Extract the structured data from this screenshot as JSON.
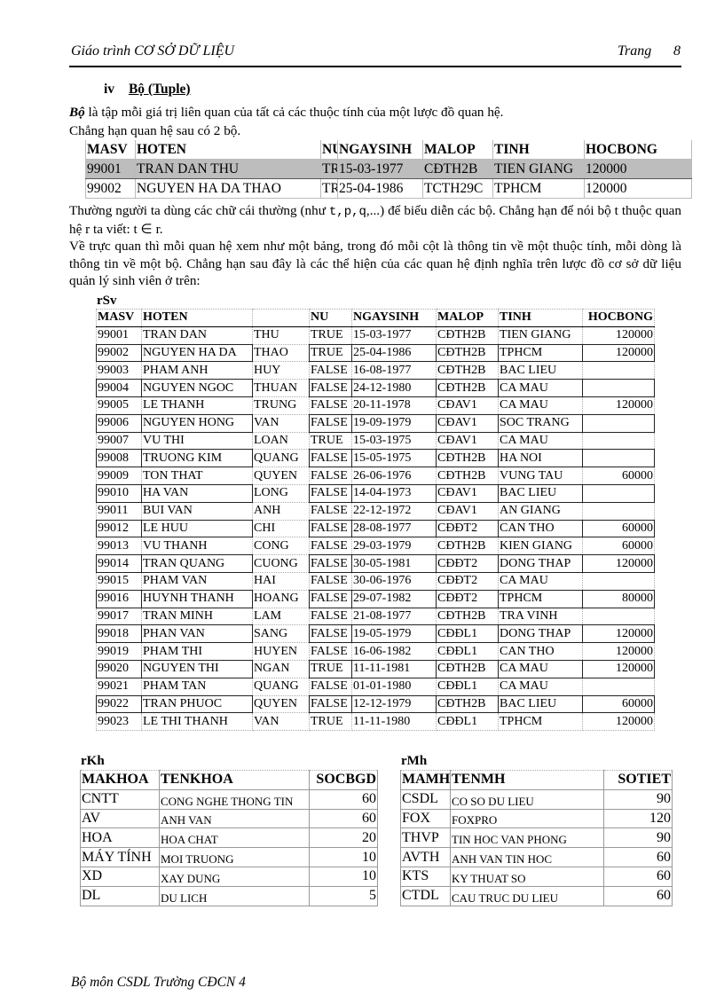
{
  "header": {
    "title": "Giáo trình CƠ SỞ DỮ LIỆU",
    "page_label": "Trang",
    "page_number": "8"
  },
  "section": {
    "number": "iv",
    "title": "Bộ (Tuple)"
  },
  "paragraphs": {
    "p1_term": "Bộ",
    "p1_rest": " là tập mỗi giá trị liên quan của tất cả các thuộc tính của một lược đồ quan hệ.",
    "p2": "Chẳng hạn quan hệ sau có 2 bộ.",
    "p3a": "Thường người ta dùng các chữ cái thường (như ",
    "p3code": "t,p,q",
    "p3b": ",...) để biểu diễn các bộ. Chẳng hạn để nói bộ t thuộc quan hệ r ta viết: t ∈ r.",
    "p4": "Về trực quan thì mỗi quan hệ xem như một bảng, trong đó mỗi cột là thông tin về một thuộc tính, mỗi dòng là thông tin về một bộ. Chẳng hạn sau đây là các thể hiện của các quan hệ định nghĩa trên lược đồ cơ sở dữ liệu quản lý sinh viên ở trên:"
  },
  "example_table": {
    "columns": [
      "MASV",
      "HOTEN",
      "NU",
      "NGAYSINH",
      "MALOP",
      "TINH",
      "HOCBONG"
    ],
    "rows": [
      [
        "99001",
        "TRAN DAN THU",
        "TRUE",
        "15-03-1977",
        "CĐTH2B",
        "TIEN GIANG",
        "120000"
      ],
      [
        "99002",
        "NGUYEN HA DA THAO",
        "TRUE",
        "25-04-1986",
        "TCTH29C",
        "TPHCM",
        "120000"
      ]
    ]
  },
  "rSv": {
    "label": "rSv",
    "columns": [
      "MASV",
      "HOTEN",
      "",
      "NU",
      "NGAYSINH",
      "MALOP",
      "TINH",
      "HOCBONG"
    ],
    "rows": [
      [
        "99001",
        "TRAN DAN",
        "THU",
        "TRUE",
        "15-03-1977",
        "CĐTH2B",
        "TIEN GIANG",
        "120000"
      ],
      [
        "99002",
        "NGUYEN HA DA",
        "THAO",
        "TRUE",
        "25-04-1986",
        "CĐTH2B",
        "TPHCM",
        "120000"
      ],
      [
        "99003",
        "PHAM ANH",
        "HUY",
        "FALSE",
        "16-08-1977",
        "CĐTH2B",
        "BAC LIEU",
        ""
      ],
      [
        "99004",
        "NGUYEN NGOC",
        "THUAN",
        "FALSE",
        "24-12-1980",
        "CĐTH2B",
        "CA MAU",
        ""
      ],
      [
        "99005",
        "LE THANH",
        "TRUNG",
        "FALSE",
        "20-11-1978",
        "CĐAV1",
        "CA MAU",
        "120000"
      ],
      [
        "99006",
        "NGUYEN HONG",
        "VAN",
        "FALSE",
        "19-09-1979",
        "CĐAV1",
        "SOC TRANG",
        ""
      ],
      [
        "99007",
        "VU THI",
        "LOAN",
        "TRUE",
        "15-03-1975",
        "CĐAV1",
        "CA MAU",
        ""
      ],
      [
        "99008",
        "TRUONG KIM",
        "QUANG",
        "FALSE",
        "15-05-1975",
        "CĐTH2B",
        "HA NOI",
        ""
      ],
      [
        "99009",
        "TON THAT",
        "QUYEN",
        "FALSE",
        "26-06-1976",
        "CĐTH2B",
        "VUNG TAU",
        "60000"
      ],
      [
        "99010",
        "HA VAN",
        "LONG",
        "FALSE",
        "14-04-1973",
        "CĐAV1",
        "BAC LIEU",
        ""
      ],
      [
        "99011",
        "BUI VAN",
        "ANH",
        "FALSE",
        "22-12-1972",
        "CĐAV1",
        "AN GIANG",
        ""
      ],
      [
        "99012",
        "LE HUU",
        "CHI",
        "FALSE",
        "28-08-1977",
        "CĐĐT2",
        "CAN THO",
        "60000"
      ],
      [
        "99013",
        "VU THANH",
        "CONG",
        "FALSE",
        "29-03-1979",
        "CĐTH2B",
        "KIEN GIANG",
        "60000"
      ],
      [
        "99014",
        "TRAN QUANG",
        "CUONG",
        "FALSE",
        "30-05-1981",
        "CĐĐT2",
        "DONG THAP",
        "120000"
      ],
      [
        "99015",
        "PHAM VAN",
        "HAI",
        "FALSE",
        "30-06-1976",
        "CĐĐT2",
        "CA MAU",
        ""
      ],
      [
        "99016",
        "HUYNH THANH",
        "HOANG",
        "FALSE",
        "29-07-1982",
        "CĐĐT2",
        "TPHCM",
        "80000"
      ],
      [
        "99017",
        "TRAN MINH",
        "LAM",
        "FALSE",
        "21-08-1977",
        "CĐTH2B",
        "TRA VINH",
        ""
      ],
      [
        "99018",
        "PHAN VAN",
        "SANG",
        "FALSE",
        "19-05-1979",
        "CĐĐL1",
        "DONG THAP",
        "120000"
      ],
      [
        "99019",
        "PHAM THI",
        "HUYEN",
        "FALSE",
        "16-06-1982",
        "CĐĐL1",
        "CAN THO",
        "120000"
      ],
      [
        "99020",
        "NGUYEN THI",
        "NGAN",
        "TRUE",
        "11-11-1981",
        "CĐTH2B",
        "CA MAU",
        "120000"
      ],
      [
        "99021",
        "PHAM TAN",
        "QUANG",
        "FALSE",
        "01-01-1980",
        "CĐĐL1",
        "CA MAU",
        ""
      ],
      [
        "99022",
        "TRAN PHUOC",
        "QUYEN",
        "FALSE",
        "12-12-1979",
        "CĐTH2B",
        "BAC LIEU",
        "60000"
      ],
      [
        "99023",
        "LE THI THANH",
        "VAN",
        "TRUE",
        "11-11-1980",
        "CĐĐL1",
        "TPHCM",
        "120000"
      ]
    ]
  },
  "rKh": {
    "label": "rKh",
    "columns": [
      "MAKHOA",
      "TENKHOA",
      "SOCBGD"
    ],
    "rows": [
      [
        "CNTT",
        "CONG NGHE THONG TIN",
        "60"
      ],
      [
        "AV",
        "ANH VAN",
        "60"
      ],
      [
        "HOA",
        "HOA CHAT",
        "20"
      ],
      [
        "MÁY TÍNH",
        "MOI TRUONG",
        "10"
      ],
      [
        "XD",
        "XAY DUNG",
        "10"
      ],
      [
        "DL",
        "DU LICH",
        "5"
      ]
    ]
  },
  "rMh": {
    "label": "rMh",
    "columns": [
      "MAMH",
      "TENMH",
      "SOTIET"
    ],
    "rows": [
      [
        "CSDL",
        "CO SO DU LIEU",
        "90"
      ],
      [
        "FOX",
        "FOXPRO",
        "120"
      ],
      [
        "THVP",
        "TIN HOC VAN PHONG",
        "90"
      ],
      [
        "AVTH",
        "ANH VAN TIN HOC",
        "60"
      ],
      [
        "KTS",
        "KY THUAT SO",
        "60"
      ],
      [
        "CTDL",
        "CAU TRUC DU LIEU",
        "60"
      ]
    ]
  },
  "footer": {
    "text": "Bộ môn CSDL Trường CĐCN 4"
  }
}
